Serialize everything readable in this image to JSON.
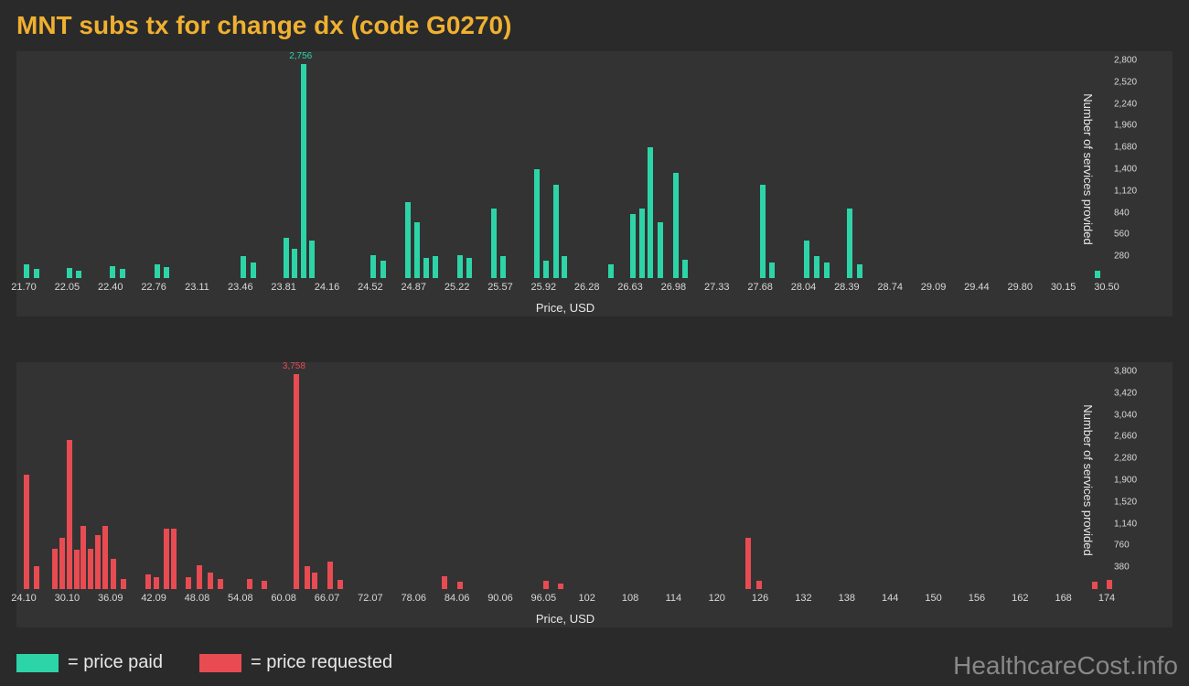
{
  "title": "MNT subs tx for change dx (code G0270)",
  "background_color": "#2a2a2a",
  "panel_color": "#333333",
  "text_color": "#e8e8e8",
  "tick_color": "#d8d8d8",
  "title_color": "#f0b030",
  "watermark": "HealthcareCost.info",
  "watermark_color": "#888888",
  "legend": {
    "paid": {
      "swatch": "#2dd4a7",
      "label": "= price paid"
    },
    "requested": {
      "swatch": "#e94b52",
      "label": "= price requested"
    }
  },
  "chart_paid": {
    "type": "bar",
    "bar_color": "#2dd4a7",
    "xlabel": "Price, USD",
    "ylabel": "Number of services provided",
    "xlim": [
      21.7,
      30.5
    ],
    "x_ticks": [
      "21.70",
      "22.05",
      "22.40",
      "22.76",
      "23.11",
      "23.46",
      "23.81",
      "24.16",
      "24.52",
      "24.87",
      "25.22",
      "25.57",
      "25.92",
      "26.28",
      "26.63",
      "26.98",
      "27.33",
      "27.68",
      "28.04",
      "28.39",
      "28.74",
      "29.09",
      "29.44",
      "29.80",
      "30.15",
      "30.50"
    ],
    "y_ticks": [
      280,
      560,
      840,
      1120,
      1400,
      1680,
      1960,
      2240,
      2520,
      2800
    ],
    "ymax": 2800,
    "peak": {
      "x": 23.95,
      "value": 2756,
      "label": "2,756"
    },
    "bars": [
      {
        "x": 21.7,
        "v": 180
      },
      {
        "x": 21.78,
        "v": 120
      },
      {
        "x": 22.05,
        "v": 130
      },
      {
        "x": 22.12,
        "v": 100
      },
      {
        "x": 22.4,
        "v": 150
      },
      {
        "x": 22.48,
        "v": 120
      },
      {
        "x": 22.76,
        "v": 180
      },
      {
        "x": 22.84,
        "v": 140
      },
      {
        "x": 23.46,
        "v": 280
      },
      {
        "x": 23.54,
        "v": 200
      },
      {
        "x": 23.81,
        "v": 520
      },
      {
        "x": 23.88,
        "v": 380
      },
      {
        "x": 23.95,
        "v": 2756
      },
      {
        "x": 24.02,
        "v": 480
      },
      {
        "x": 24.52,
        "v": 300
      },
      {
        "x": 24.6,
        "v": 220
      },
      {
        "x": 24.8,
        "v": 980
      },
      {
        "x": 24.87,
        "v": 720
      },
      {
        "x": 24.95,
        "v": 260
      },
      {
        "x": 25.02,
        "v": 280
      },
      {
        "x": 25.22,
        "v": 300
      },
      {
        "x": 25.3,
        "v": 260
      },
      {
        "x": 25.5,
        "v": 900
      },
      {
        "x": 25.57,
        "v": 280
      },
      {
        "x": 25.85,
        "v": 1400
      },
      {
        "x": 25.92,
        "v": 220
      },
      {
        "x": 26.0,
        "v": 1200
      },
      {
        "x": 26.07,
        "v": 280
      },
      {
        "x": 26.45,
        "v": 180
      },
      {
        "x": 26.63,
        "v": 820
      },
      {
        "x": 26.7,
        "v": 900
      },
      {
        "x": 26.77,
        "v": 1680
      },
      {
        "x": 26.85,
        "v": 720
      },
      {
        "x": 26.98,
        "v": 1350
      },
      {
        "x": 27.05,
        "v": 240
      },
      {
        "x": 27.68,
        "v": 1200
      },
      {
        "x": 27.76,
        "v": 200
      },
      {
        "x": 28.04,
        "v": 480
      },
      {
        "x": 28.12,
        "v": 280
      },
      {
        "x": 28.2,
        "v": 200
      },
      {
        "x": 28.39,
        "v": 900
      },
      {
        "x": 28.47,
        "v": 180
      },
      {
        "x": 30.4,
        "v": 100
      }
    ]
  },
  "chart_requested": {
    "type": "bar",
    "bar_color": "#e94b52",
    "xlabel": "Price, USD",
    "ylabel": "Number of services provided",
    "xlim": [
      24.1,
      174
    ],
    "x_ticks": [
      "24.10",
      "30.10",
      "36.09",
      "42.09",
      "48.08",
      "54.08",
      "60.08",
      "66.07",
      "72.07",
      "78.06",
      "84.06",
      "90.06",
      "96.05",
      "102",
      "108",
      "114",
      "120",
      "126",
      "132",
      "138",
      "144",
      "150",
      "156",
      "162",
      "168",
      "174"
    ],
    "y_ticks": [
      380,
      760,
      1140,
      1520,
      1900,
      2280,
      2660,
      3040,
      3420,
      3800
    ],
    "ymax": 3800,
    "peak": {
      "x": 61.5,
      "value": 3758,
      "label": "3,758"
    },
    "bars": [
      {
        "x": 24.1,
        "v": 2000
      },
      {
        "x": 25.5,
        "v": 400
      },
      {
        "x": 28.0,
        "v": 700
      },
      {
        "x": 29.0,
        "v": 900
      },
      {
        "x": 30.1,
        "v": 2600
      },
      {
        "x": 31.0,
        "v": 680
      },
      {
        "x": 32.0,
        "v": 1100
      },
      {
        "x": 33.0,
        "v": 700
      },
      {
        "x": 34.0,
        "v": 950
      },
      {
        "x": 35.0,
        "v": 1100
      },
      {
        "x": 36.09,
        "v": 520
      },
      {
        "x": 37.5,
        "v": 180
      },
      {
        "x": 41.0,
        "v": 250
      },
      {
        "x": 42.09,
        "v": 200
      },
      {
        "x": 43.5,
        "v": 1050
      },
      {
        "x": 44.5,
        "v": 1050
      },
      {
        "x": 46.5,
        "v": 200
      },
      {
        "x": 48.08,
        "v": 420
      },
      {
        "x": 49.5,
        "v": 280
      },
      {
        "x": 51.0,
        "v": 180
      },
      {
        "x": 55.0,
        "v": 180
      },
      {
        "x": 57.0,
        "v": 150
      },
      {
        "x": 61.5,
        "v": 3758
      },
      {
        "x": 63.0,
        "v": 400
      },
      {
        "x": 64.0,
        "v": 280
      },
      {
        "x": 66.07,
        "v": 480
      },
      {
        "x": 67.5,
        "v": 160
      },
      {
        "x": 82.0,
        "v": 220
      },
      {
        "x": 84.06,
        "v": 120
      },
      {
        "x": 96.05,
        "v": 140
      },
      {
        "x": 98.0,
        "v": 100
      },
      {
        "x": 124.0,
        "v": 900
      },
      {
        "x": 125.5,
        "v": 150
      },
      {
        "x": 172.0,
        "v": 120
      },
      {
        "x": 174,
        "v": 160
      }
    ]
  }
}
